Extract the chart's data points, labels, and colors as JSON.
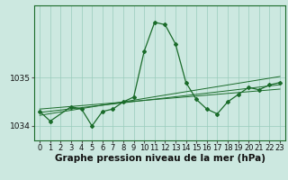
{
  "hours": [
    0,
    1,
    2,
    3,
    4,
    5,
    6,
    7,
    8,
    9,
    10,
    11,
    12,
    13,
    14,
    15,
    16,
    17,
    18,
    19,
    20,
    21,
    22,
    23
  ],
  "pressure_main": [
    1034.3,
    1034.1,
    null,
    1034.4,
    1034.35,
    1034.0,
    1034.3,
    1034.35,
    1034.5,
    1034.6,
    1035.55,
    1036.15,
    1036.1,
    1035.7,
    1034.9,
    1034.55,
    1034.35,
    1034.25,
    1034.5,
    1034.65,
    1034.8,
    1034.75,
    1034.85,
    1034.9
  ],
  "line1": [
    1034.28,
    1034.305,
    1034.33,
    1034.355,
    1034.38,
    1034.405,
    1034.43,
    1034.455,
    1034.48,
    1034.505,
    1034.53,
    1034.555,
    1034.58,
    1034.605,
    1034.63,
    1034.655,
    1034.68,
    1034.705,
    1034.73,
    1034.755,
    1034.78,
    1034.805,
    1034.83,
    1034.855
  ],
  "line2": [
    1034.22,
    1034.255,
    1034.29,
    1034.325,
    1034.36,
    1034.395,
    1034.43,
    1034.465,
    1034.5,
    1034.535,
    1034.57,
    1034.605,
    1034.64,
    1034.675,
    1034.71,
    1034.745,
    1034.78,
    1034.815,
    1034.85,
    1034.885,
    1034.92,
    1034.955,
    1034.99,
    1035.025
  ],
  "line3": [
    1034.35,
    1034.368,
    1034.386,
    1034.404,
    1034.422,
    1034.44,
    1034.458,
    1034.476,
    1034.494,
    1034.512,
    1034.53,
    1034.548,
    1034.566,
    1034.584,
    1034.602,
    1034.62,
    1034.638,
    1034.656,
    1034.674,
    1034.692,
    1034.71,
    1034.728,
    1034.746,
    1034.764
  ],
  "bg_color": "#cce8e0",
  "grid_color": "#99ccbb",
  "line_color": "#1a6b2a",
  "yticks": [
    1034,
    1035
  ],
  "ylim": [
    1033.7,
    1036.5
  ],
  "xlim": [
    -0.5,
    23.5
  ],
  "xlabel": "Graphe pression niveau de la mer (hPa)",
  "xlabel_fontsize": 7.5,
  "tick_fontsize": 6.5
}
